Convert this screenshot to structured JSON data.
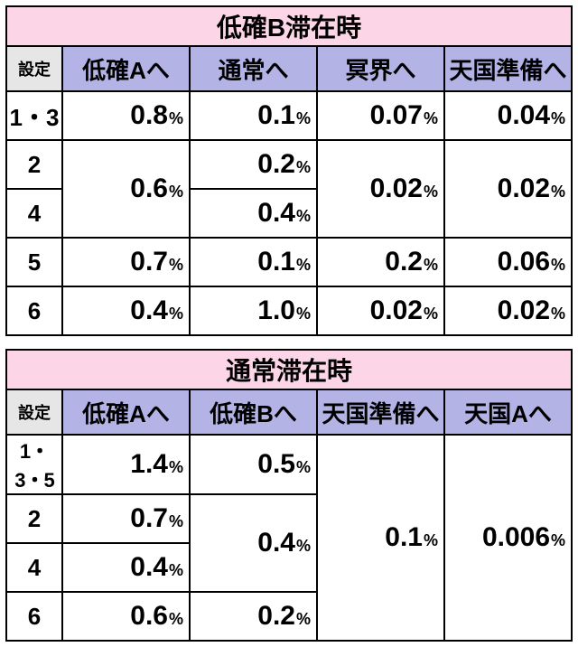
{
  "colors": {
    "title_bg": "#fcd5e6",
    "header_bg": "#b3b3e6",
    "setting_hdr_bg": "#e6e6e6",
    "border": "#000000",
    "background": "#ffffff"
  },
  "typography": {
    "title_fontsize": 28,
    "col_header_fontsize": 26,
    "setting_hdr_fontsize": 18,
    "value_num_fontsize": 30,
    "value_pct_fontsize": 18,
    "setting_cell_fontsize": 26
  },
  "table1": {
    "title": "低確B滞在時",
    "setting_header": "設定",
    "columns": [
      "低確Aへ",
      "通常へ",
      "冥界へ",
      "天国準備へ"
    ],
    "rows": [
      {
        "setting": "1・3",
        "cells": [
          "0.8",
          "0.1",
          "0.07",
          "0.04"
        ]
      },
      {
        "setting": "2",
        "cells": [
          null,
          "0.2",
          null,
          null
        ]
      },
      {
        "setting": "4",
        "cells": [
          null,
          "0.4",
          null,
          null
        ]
      },
      {
        "setting": "5",
        "cells": [
          "0.7",
          "0.1",
          "0.2",
          "0.06"
        ]
      },
      {
        "setting": "6",
        "cells": [
          "0.4",
          "1.0",
          "0.02",
          "0.02"
        ]
      }
    ],
    "merged": {
      "r1c0_rowspan2": "0.6",
      "r1c2_rowspan2": "0.02",
      "r1c3_rowspan2": "0.02"
    },
    "unit": "%"
  },
  "table2": {
    "title": "通常滞在時",
    "setting_header": "設定",
    "columns": [
      "低確Aへ",
      "低確Bへ",
      "天国準備へ",
      "天国Aへ"
    ],
    "rows": [
      {
        "setting": "1・3・5",
        "cells": [
          "1.4",
          "0.5",
          null,
          null
        ]
      },
      {
        "setting": "2",
        "cells": [
          "0.7",
          null,
          null,
          null
        ]
      },
      {
        "setting": "4",
        "cells": [
          "0.4",
          null,
          null,
          null
        ]
      },
      {
        "setting": "6",
        "cells": [
          "0.6",
          "0.2",
          null,
          null
        ]
      }
    ],
    "merged": {
      "r0c2_rowspan4": "0.1",
      "r0c3_rowspan4": "0.006",
      "r1c1_rowspan2": "0.4"
    },
    "unit": "%"
  }
}
